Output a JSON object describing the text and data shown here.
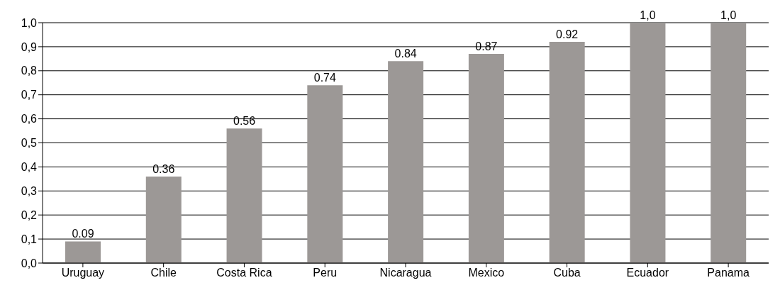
{
  "chart_data": {
    "type": "bar",
    "categories": [
      "Uruguay",
      "Chile",
      "Costa Rica",
      "Peru",
      "Nicaragua",
      "Mexico",
      "Cuba",
      "Ecuador",
      "Panama"
    ],
    "values": [
      0.09,
      0.36,
      0.56,
      0.74,
      0.84,
      0.87,
      0.92,
      1.0,
      1.0
    ],
    "value_labels": [
      "0.09",
      "0.36",
      "0.56",
      "0.74",
      "0.84",
      "0.87",
      "0.92",
      "1,0",
      "1,0"
    ],
    "color": "#9c9896",
    "ylim": [
      0,
      1
    ],
    "yticks": [
      {
        "value": 0,
        "label": "0,0"
      },
      {
        "value": 0.1,
        "label": "0,1"
      },
      {
        "value": 0.2,
        "label": "0,2"
      },
      {
        "value": 0.3,
        "label": "0,3"
      },
      {
        "value": 0.4,
        "label": "0,4"
      },
      {
        "value": 0.5,
        "label": "0,5"
      },
      {
        "value": 0.6,
        "label": "0,6"
      },
      {
        "value": 0.7,
        "label": "0,7"
      },
      {
        "value": 0.8,
        "label": "0,8"
      },
      {
        "value": 0.9,
        "label": "0,9"
      },
      {
        "value": 1,
        "label": "1,0"
      }
    ],
    "grid": "y",
    "legend": false
  }
}
